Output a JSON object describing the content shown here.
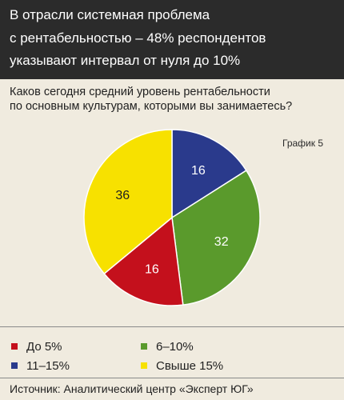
{
  "header": {
    "lines": [
      "В отрасли системная проблема",
      "с рентабельностью – 48% респондентов",
      "указывают интервал от нуля до 10%"
    ]
  },
  "question": {
    "lines": [
      "Каков сегодня средний уровень рентабельности",
      "по основным культурам, которыми вы занимаетесь?"
    ]
  },
  "chart_label": "График 5",
  "source": "Источник: Аналитический центр «Эксперт ЮГ»",
  "chart_data": {
    "type": "pie",
    "title": "",
    "slices": [
      {
        "label": "11–15%",
        "value": 16,
        "color": "#2a3a8c"
      },
      {
        "label": "6–10%",
        "value": 32,
        "color": "#5a9a2c"
      },
      {
        "label": "До 5%",
        "value": 16,
        "color": "#c4101c"
      },
      {
        "label": "Свыше 15%",
        "value": 36,
        "color": "#f7e100"
      }
    ],
    "legend": [
      {
        "label": "До 5%",
        "color": "#c4101c"
      },
      {
        "label": "6–10%",
        "color": "#5a9a2c"
      },
      {
        "label": "11–15%",
        "color": "#2a3a8c"
      },
      {
        "label": "Свыше 15%",
        "color": "#f7e100"
      }
    ],
    "legend_placement": "bottom"
  }
}
